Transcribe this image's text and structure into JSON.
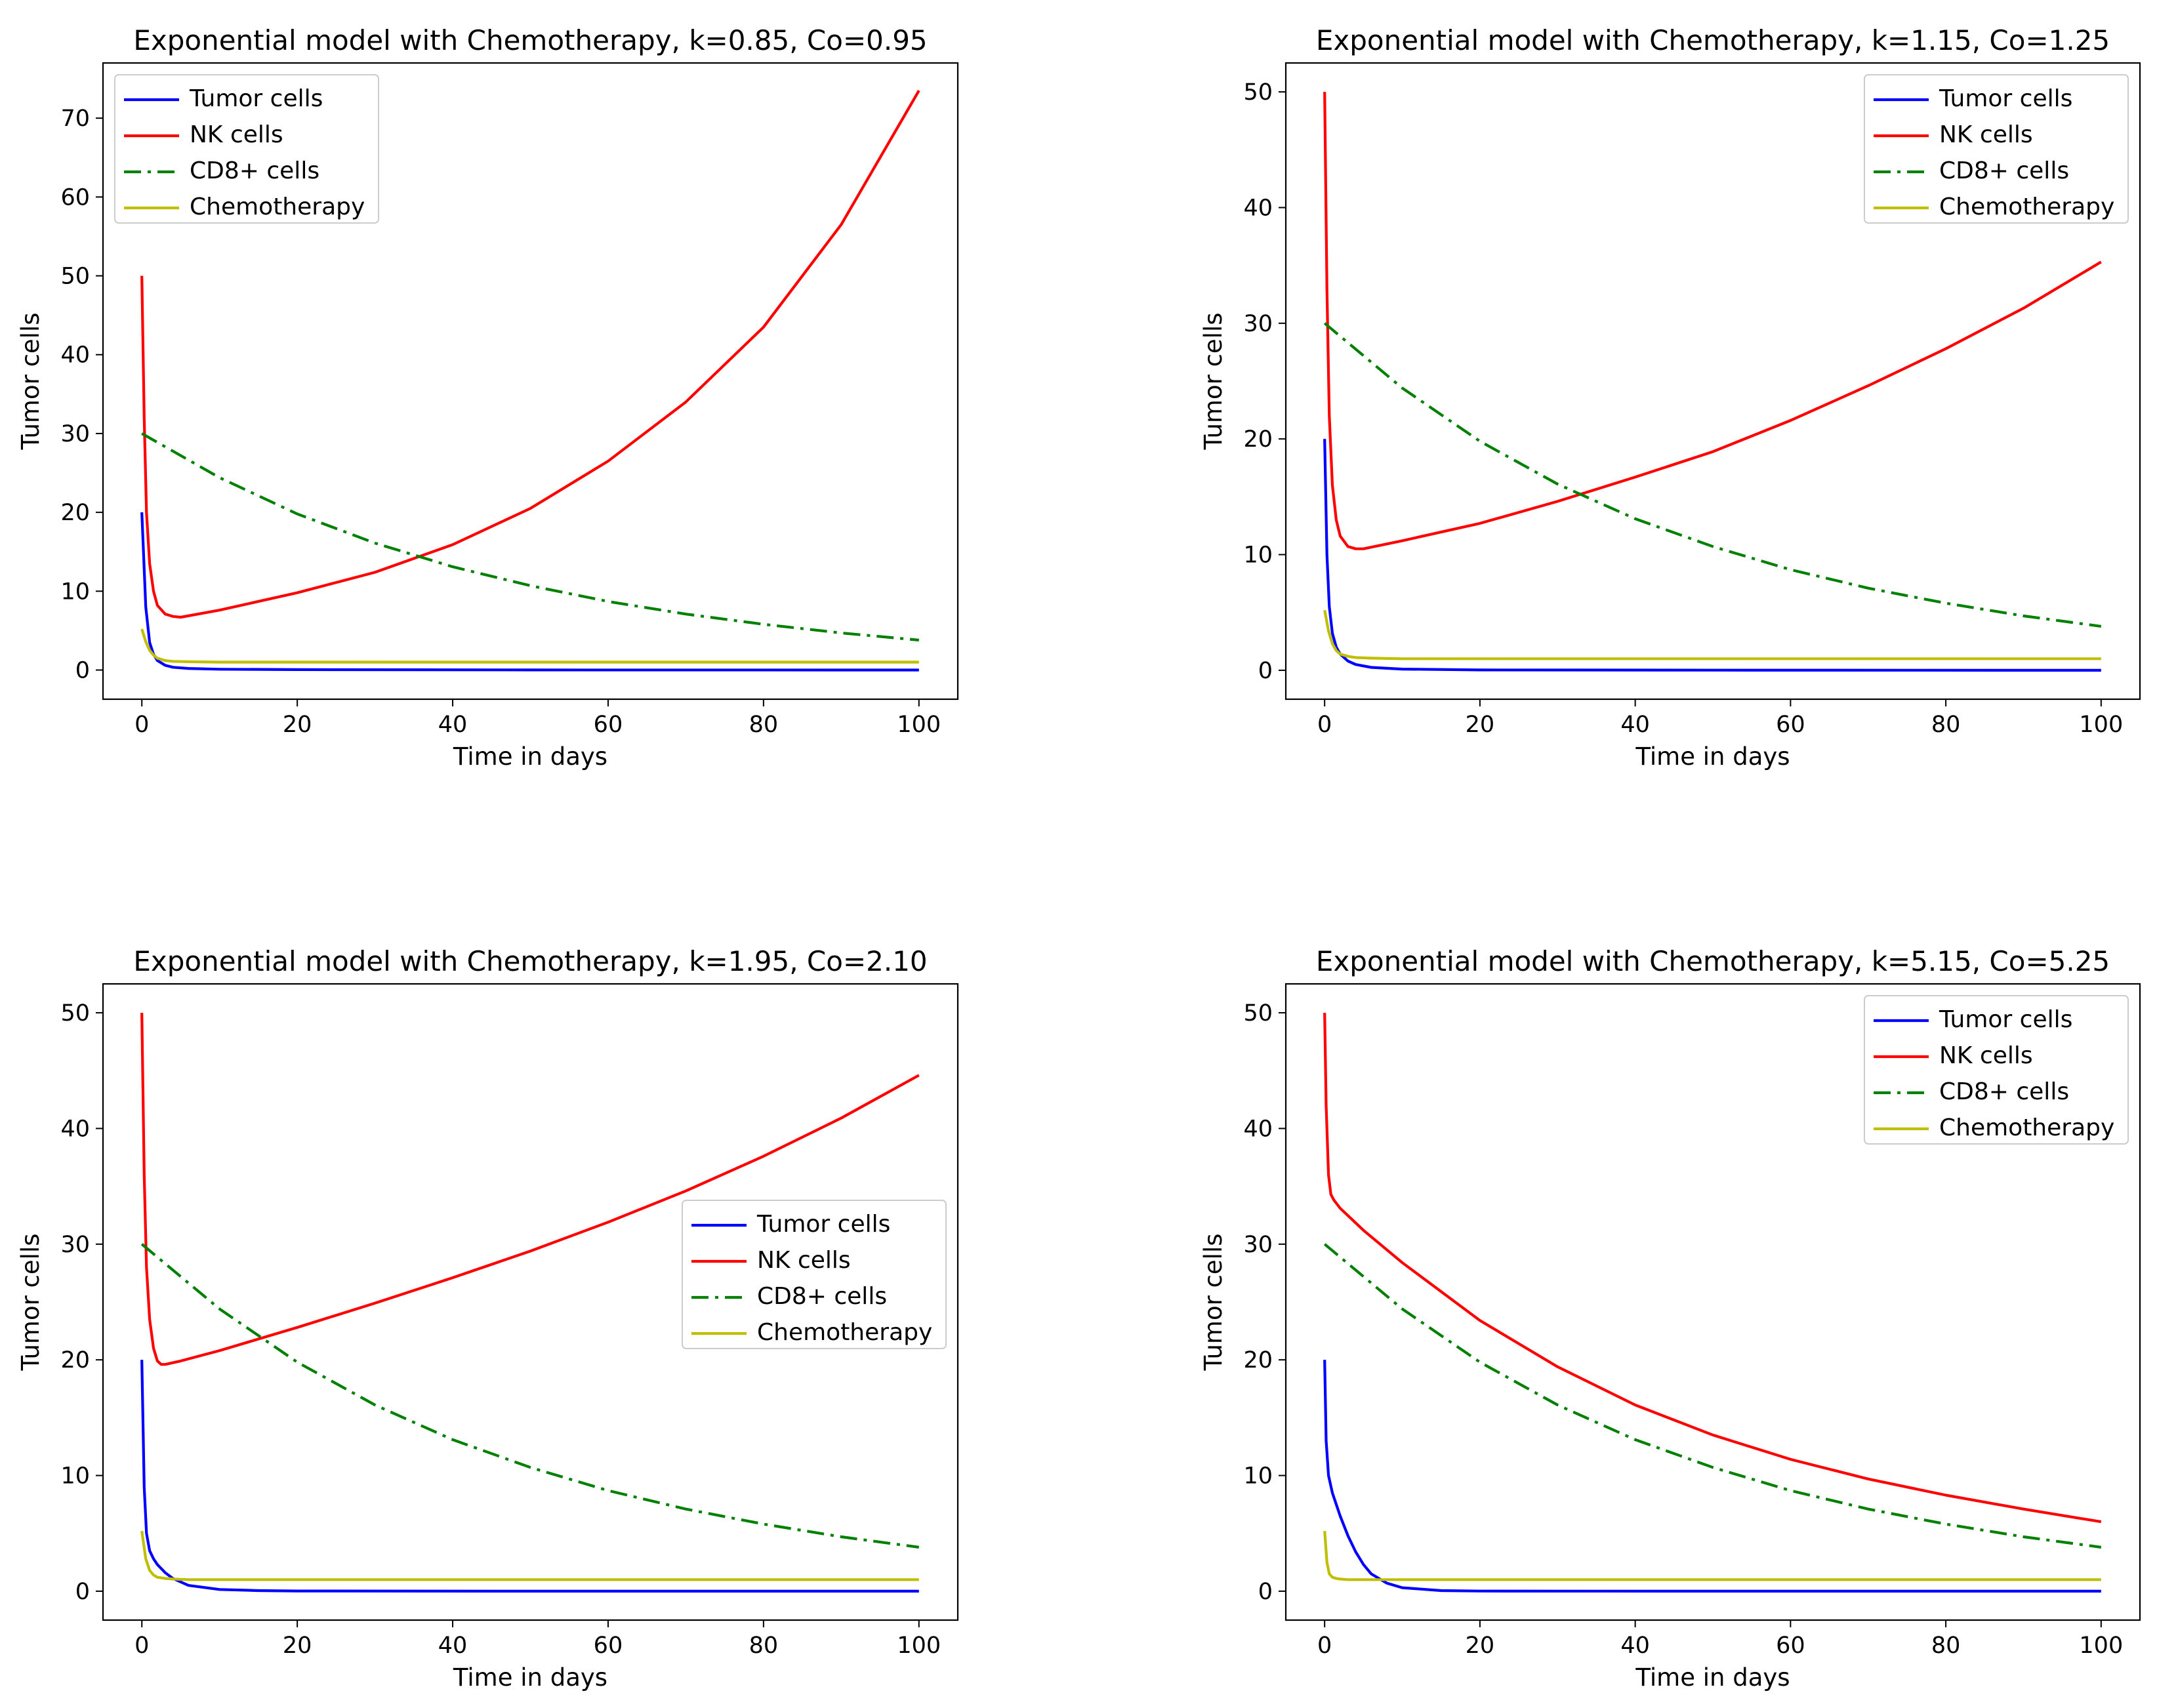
{
  "chart_data": [
    {
      "type": "line",
      "title": "Exponential model with Chemotherapy, k=0.85, Co=0.95",
      "xlabel": "Time in days",
      "ylabel": "Tumor cells",
      "xlim": [
        -5,
        105
      ],
      "ylim": [
        -3.7,
        77.0
      ],
      "xticks": [
        0,
        20,
        40,
        60,
        80,
        100
      ],
      "yticks": [
        0,
        10,
        20,
        30,
        40,
        50,
        60,
        70
      ],
      "legend_position": "upper-left",
      "grid": false,
      "series": [
        {
          "name": "Tumor cells",
          "color": "#0000ff",
          "style": "solid",
          "x": [
            0,
            0.5,
            1,
            1.5,
            2,
            3,
            4,
            6,
            10,
            20,
            50,
            100
          ],
          "y": [
            20,
            8,
            3.5,
            2,
            1.2,
            0.6,
            0.35,
            0.2,
            0.1,
            0.05,
            0.01,
            0
          ]
        },
        {
          "name": "NK cells",
          "color": "#ff0000",
          "style": "solid",
          "x": [
            0,
            0.3,
            0.6,
            1,
            1.5,
            2,
            3,
            4,
            5,
            10,
            20,
            30,
            40,
            50,
            60,
            70,
            80,
            90,
            100
          ],
          "y": [
            50,
            32,
            20,
            13.5,
            10,
            8.2,
            7.1,
            6.8,
            6.7,
            7.6,
            9.8,
            12.4,
            15.9,
            20.5,
            26.5,
            34.0,
            43.5,
            56.5,
            73.5
          ]
        },
        {
          "name": "CD8+ cells",
          "color": "#008000",
          "style": "dashdot",
          "x": [
            0,
            10,
            20,
            30,
            40,
            50,
            60,
            70,
            80,
            90,
            100
          ],
          "y": [
            30,
            24.4,
            19.8,
            16.1,
            13.1,
            10.7,
            8.7,
            7.1,
            5.8,
            4.7,
            3.8
          ]
        },
        {
          "name": "Chemotherapy",
          "color": "#bfbf00",
          "style": "solid",
          "x": [
            0,
            0.5,
            1,
            1.5,
            2,
            3,
            4,
            6,
            10,
            100
          ],
          "y": [
            5.2,
            3.6,
            2.5,
            1.9,
            1.5,
            1.2,
            1.1,
            1.05,
            1.0,
            1.0
          ]
        }
      ]
    },
    {
      "type": "line",
      "title": "Exponential model with Chemotherapy, k=1.15, Co=1.25",
      "xlabel": "Time in days",
      "ylabel": "Tumor cells",
      "xlim": [
        -5,
        105
      ],
      "ylim": [
        -2.5,
        52.5
      ],
      "xticks": [
        0,
        20,
        40,
        60,
        80,
        100
      ],
      "yticks": [
        0,
        10,
        20,
        30,
        40,
        50
      ],
      "legend_position": "upper-right",
      "grid": false,
      "series": [
        {
          "name": "Tumor cells",
          "color": "#0000ff",
          "style": "solid",
          "x": [
            0,
            0.3,
            0.6,
            1,
            1.5,
            2,
            3,
            4,
            6,
            10,
            20,
            50,
            100
          ],
          "y": [
            20,
            10,
            5.5,
            3.2,
            2.0,
            1.4,
            0.8,
            0.5,
            0.25,
            0.1,
            0.03,
            0.01,
            0
          ]
        },
        {
          "name": "NK cells",
          "color": "#ff0000",
          "style": "solid",
          "x": [
            0,
            0.3,
            0.6,
            1,
            1.5,
            2,
            3,
            4,
            5,
            10,
            20,
            30,
            40,
            50,
            60,
            70,
            80,
            90,
            100
          ],
          "y": [
            50,
            33,
            22,
            16,
            13,
            11.6,
            10.7,
            10.5,
            10.5,
            11.2,
            12.7,
            14.6,
            16.7,
            18.9,
            21.6,
            24.6,
            27.8,
            31.3,
            35.3
          ]
        },
        {
          "name": "CD8+ cells",
          "color": "#008000",
          "style": "dashdot",
          "x": [
            0,
            10,
            20,
            30,
            40,
            50,
            60,
            70,
            80,
            90,
            100
          ],
          "y": [
            30,
            24.4,
            19.8,
            16.1,
            13.1,
            10.7,
            8.7,
            7.1,
            5.8,
            4.7,
            3.8
          ]
        },
        {
          "name": "Chemotherapy",
          "color": "#bfbf00",
          "style": "solid",
          "x": [
            0,
            0.5,
            1,
            1.5,
            2,
            3,
            4,
            6,
            10,
            100
          ],
          "y": [
            5.2,
            3.4,
            2.3,
            1.7,
            1.4,
            1.2,
            1.1,
            1.05,
            1.0,
            1.0
          ]
        }
      ]
    },
    {
      "type": "line",
      "title": "Exponential model with Chemotherapy, k=1.95, Co=2.10",
      "xlabel": "Time in days",
      "ylabel": "Tumor cells",
      "xlim": [
        -5,
        105
      ],
      "ylim": [
        -2.5,
        52.5
      ],
      "xticks": [
        0,
        20,
        40,
        60,
        80,
        100
      ],
      "yticks": [
        0,
        10,
        20,
        30,
        40,
        50
      ],
      "legend_position": "center-right",
      "grid": false,
      "series": [
        {
          "name": "Tumor cells",
          "color": "#0000ff",
          "style": "solid",
          "x": [
            0,
            0.3,
            0.6,
            1,
            1.5,
            2,
            3,
            4,
            6,
            10,
            15,
            20,
            50,
            100
          ],
          "y": [
            20,
            9,
            5,
            3.5,
            2.8,
            2.3,
            1.6,
            1.1,
            0.5,
            0.15,
            0.05,
            0.02,
            0,
            0
          ]
        },
        {
          "name": "NK cells",
          "color": "#ff0000",
          "style": "solid",
          "x": [
            0,
            0.3,
            0.6,
            1,
            1.5,
            2,
            2.5,
            3,
            5,
            10,
            20,
            30,
            40,
            50,
            60,
            70,
            80,
            90,
            100
          ],
          "y": [
            50,
            36,
            28,
            23.5,
            21,
            19.9,
            19.6,
            19.6,
            19.9,
            20.8,
            22.8,
            24.9,
            27.1,
            29.4,
            31.9,
            34.6,
            37.6,
            40.9,
            44.6
          ]
        },
        {
          "name": "CD8+ cells",
          "color": "#008000",
          "style": "dashdot",
          "x": [
            0,
            10,
            20,
            30,
            40,
            50,
            60,
            70,
            80,
            90,
            100
          ],
          "y": [
            30,
            24.4,
            19.8,
            16.1,
            13.1,
            10.7,
            8.7,
            7.1,
            5.8,
            4.7,
            3.8
          ]
        },
        {
          "name": "Chemotherapy",
          "color": "#bfbf00",
          "style": "solid",
          "x": [
            0,
            0.5,
            1,
            1.5,
            2,
            3,
            4,
            6,
            10,
            100
          ],
          "y": [
            5.2,
            2.8,
            1.8,
            1.4,
            1.2,
            1.1,
            1.05,
            1.0,
            1.0,
            1.0
          ]
        }
      ]
    },
    {
      "type": "line",
      "title": "Exponential model with Chemotherapy, k=5.15, Co=5.25",
      "xlabel": "Time in days",
      "ylabel": "Tumor cells",
      "xlim": [
        -5,
        105
      ],
      "ylim": [
        -2.5,
        52.5
      ],
      "xticks": [
        0,
        20,
        40,
        60,
        80,
        100
      ],
      "yticks": [
        0,
        10,
        20,
        30,
        40,
        50
      ],
      "legend_position": "upper-right",
      "grid": false,
      "series": [
        {
          "name": "Tumor cells",
          "color": "#0000ff",
          "style": "solid",
          "x": [
            0,
            0.2,
            0.5,
            1,
            1.5,
            2,
            3,
            4,
            5,
            6,
            8,
            10,
            15,
            20,
            50,
            100
          ],
          "y": [
            20,
            13,
            10,
            8.5,
            7.5,
            6.5,
            4.8,
            3.4,
            2.3,
            1.5,
            0.7,
            0.3,
            0.05,
            0.01,
            0,
            0
          ]
        },
        {
          "name": "NK cells",
          "color": "#ff0000",
          "style": "solid",
          "x": [
            0,
            0.2,
            0.5,
            0.8,
            1.2,
            2,
            5,
            10,
            20,
            30,
            40,
            50,
            60,
            70,
            80,
            90,
            100
          ],
          "y": [
            50,
            42,
            36,
            34.3,
            33.8,
            33.1,
            31.2,
            28.4,
            23.4,
            19.4,
            16.1,
            13.5,
            11.4,
            9.7,
            8.3,
            7.1,
            6.0
          ]
        },
        {
          "name": "CD8+ cells",
          "color": "#008000",
          "style": "dashdot",
          "x": [
            0,
            10,
            20,
            30,
            40,
            50,
            60,
            70,
            80,
            90,
            100
          ],
          "y": [
            30,
            24.4,
            19.8,
            16.1,
            13.1,
            10.7,
            8.7,
            7.1,
            5.8,
            4.7,
            3.8
          ]
        },
        {
          "name": "Chemotherapy",
          "color": "#bfbf00",
          "style": "solid",
          "x": [
            0,
            0.3,
            0.6,
            1,
            1.5,
            2,
            3,
            6,
            10,
            100
          ],
          "y": [
            5.2,
            2.5,
            1.5,
            1.2,
            1.1,
            1.05,
            1.0,
            1.0,
            1.0,
            1.0
          ]
        }
      ]
    }
  ]
}
